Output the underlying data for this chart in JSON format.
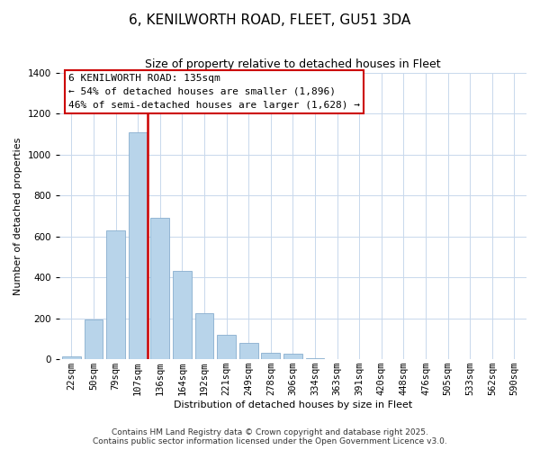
{
  "title": "6, KENILWORTH ROAD, FLEET, GU51 3DA",
  "subtitle": "Size of property relative to detached houses in Fleet",
  "xlabel": "Distribution of detached houses by size in Fleet",
  "ylabel": "Number of detached properties",
  "bar_labels": [
    "22sqm",
    "50sqm",
    "79sqm",
    "107sqm",
    "136sqm",
    "164sqm",
    "192sqm",
    "221sqm",
    "249sqm",
    "278sqm",
    "306sqm",
    "334sqm",
    "363sqm",
    "391sqm",
    "420sqm",
    "448sqm",
    "476sqm",
    "505sqm",
    "533sqm",
    "562sqm",
    "590sqm"
  ],
  "bar_values": [
    15,
    195,
    630,
    1110,
    690,
    430,
    225,
    120,
    80,
    30,
    25,
    5,
    0,
    0,
    0,
    0,
    0,
    0,
    0,
    0,
    0
  ],
  "bar_color": "#b8d4ea",
  "bar_edge_color": "#88aece",
  "vline_color": "#cc0000",
  "ylim": [
    0,
    1400
  ],
  "yticks": [
    0,
    200,
    400,
    600,
    800,
    1000,
    1200,
    1400
  ],
  "annotation_title": "6 KENILWORTH ROAD: 135sqm",
  "annotation_line1": "← 54% of detached houses are smaller (1,896)",
  "annotation_line2": "46% of semi-detached houses are larger (1,628) →",
  "footer_line1": "Contains HM Land Registry data © Crown copyright and database right 2025.",
  "footer_line2": "Contains public sector information licensed under the Open Government Licence v3.0.",
  "background_color": "#ffffff",
  "grid_color": "#c8d8ec",
  "title_fontsize": 11,
  "subtitle_fontsize": 9,
  "axis_label_fontsize": 8,
  "tick_fontsize": 7.5,
  "annotation_fontsize": 8,
  "footer_fontsize": 6.5
}
